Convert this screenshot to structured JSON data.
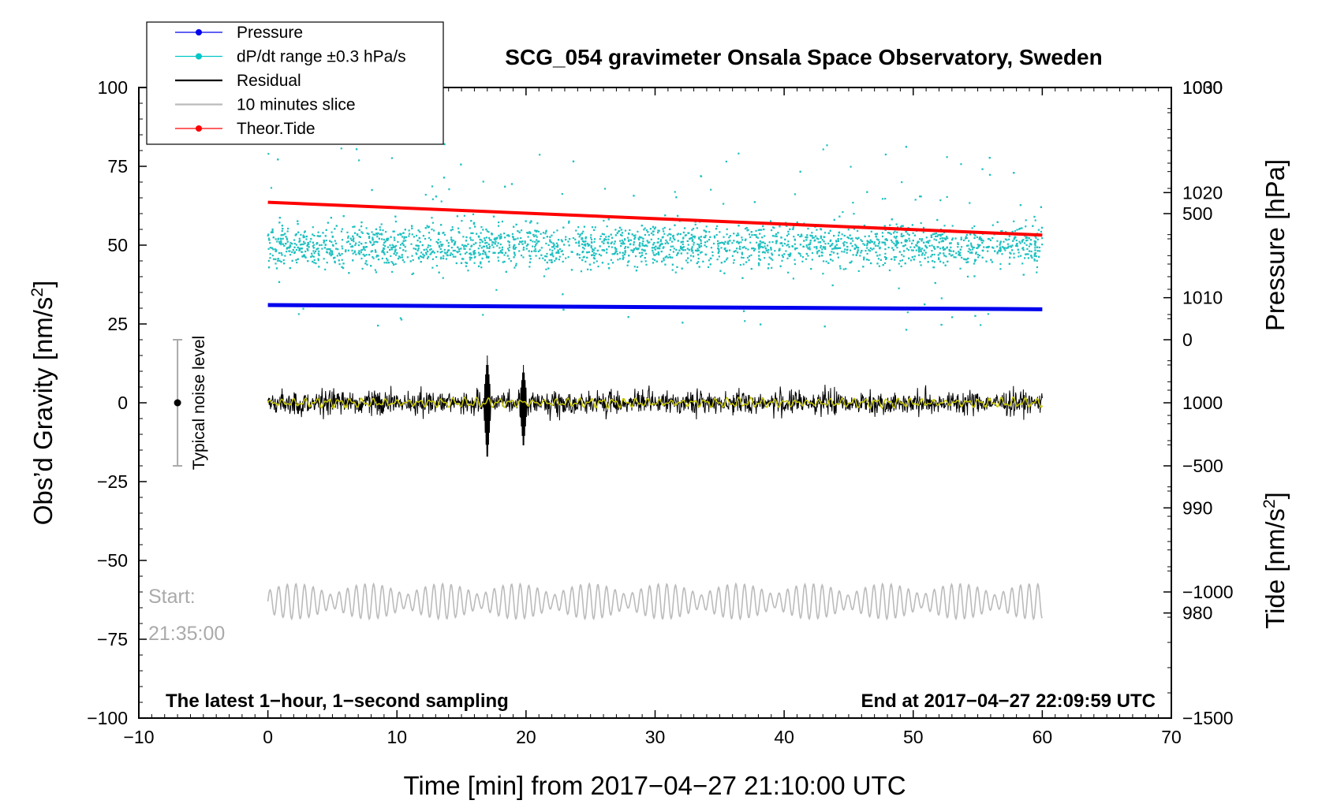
{
  "chart_data": {
    "type": "line",
    "title": "SCG_054 gravimeter Onsala Space Observatory, Sweden",
    "xlabel": "Time [min] from 2017−04−27 21:10:00 UTC",
    "ylabel": "Obs’d Gravity [nm/s",
    "ylabel_sup": "2",
    "ylabel_end": "]",
    "y2label": "Pressure [hPa]",
    "y3label": "Tide [nm/s",
    "y3label_sup": "2",
    "y3label_end": "]",
    "xlim": [
      -10,
      70
    ],
    "ylim": [
      -100,
      100
    ],
    "pressure_lim": [
      970,
      1030
    ],
    "tide_lim": [
      -1500,
      1000
    ],
    "x_ticks": [
      "−10",
      "0",
      "10",
      "20",
      "30",
      "40",
      "50",
      "60",
      "70"
    ],
    "x_tick_values": [
      -10,
      0,
      10,
      20,
      30,
      40,
      50,
      60,
      70
    ],
    "y_ticks": [
      "100",
      "75",
      "50",
      "25",
      "0",
      "−25",
      "−50",
      "−75",
      "−100"
    ],
    "y_tick_values": [
      100,
      75,
      50,
      25,
      0,
      -25,
      -50,
      -75,
      -100
    ],
    "pressure_ticks": [
      "1030",
      "1020",
      "1010",
      "1000",
      "990",
      "980"
    ],
    "pressure_tick_values": [
      1030,
      1020,
      1010,
      1000,
      990,
      980
    ],
    "tide_ticks": [
      "1000",
      "500",
      "0",
      "−500",
      "−1000",
      "−1500"
    ],
    "tide_tick_values": [
      1000,
      500,
      0,
      -500,
      -1000,
      -1500
    ],
    "legend": [
      {
        "label": "Pressure",
        "color": "#0000ee",
        "style": "line-dot"
      },
      {
        "label": "dP/dt range ±0.3 hPa/s",
        "color": "#00c8c8",
        "style": "line-dot"
      },
      {
        "label": "Residual",
        "color": "#000000",
        "style": "line"
      },
      {
        "label": "10 minutes slice",
        "color": "#bbbbbb",
        "style": "line"
      },
      {
        "label": "Theor.Tide",
        "color": "#ff0000",
        "style": "line-dot"
      }
    ],
    "series": [
      {
        "name": "Pressure",
        "axis": "pressure",
        "x": [
          0,
          60
        ],
        "values": [
          1009.3,
          1008.9
        ],
        "color": "#0000ee"
      },
      {
        "name": "dP/dt range ±0.3 hPa/s",
        "axis": "gravity",
        "x_range": [
          0,
          60
        ],
        "center": 50,
        "spread": 9,
        "color": "#20c0c0"
      },
      {
        "name": "Residual",
        "axis": "gravity",
        "x_range": [
          0,
          60
        ],
        "center": 0,
        "amplitude": 4,
        "spikes": [
          {
            "x": 17,
            "min": -19,
            "max": 15
          },
          {
            "x": 19.8,
            "min": -15,
            "max": 12
          }
        ],
        "color": "#000000"
      },
      {
        "name": "Residual (smoothed)",
        "axis": "gravity",
        "x_range": [
          0,
          60
        ],
        "center": 0,
        "amplitude": 1.5,
        "color": "#c8c800"
      },
      {
        "name": "Theor.Tide",
        "axis": "tide",
        "x": [
          0,
          60
        ],
        "values": [
          545,
          415
        ],
        "color": "#ff0000"
      },
      {
        "name": "10 minutes slice",
        "axis": "gravity",
        "x_range": [
          0,
          60
        ],
        "center": -63,
        "amplitude": 4,
        "color": "#bbbbbb"
      }
    ],
    "noise_level": {
      "x": -7,
      "center": 0,
      "min": -20,
      "max": 20,
      "label": "Typical noise level"
    },
    "start_label": "Start:",
    "start_time": "21:35:00",
    "annotation_left": "The latest 1−hour, 1−second sampling",
    "annotation_right": "End at 2017−04−27 22:09:59 UTC"
  }
}
